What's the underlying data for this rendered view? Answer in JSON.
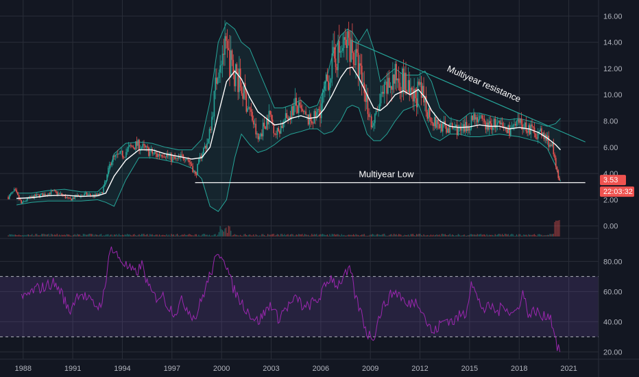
{
  "chart_data": {
    "type": "candlestick",
    "title": "",
    "colors": {
      "background": "#131722",
      "grid": "#2a2e39",
      "axis_text": "#b2b5be",
      "candle_up": "#26a69a",
      "candle_down": "#ef5350",
      "ma": "#ffffff",
      "band": "#26a69a",
      "band_fill": "rgba(38,166,154,0.10)",
      "trendline": "#26a69a",
      "low_line": "#ffffff",
      "price_label_bg": "#ef5350",
      "rsi_line": "#9c27b0",
      "rsi_zone": "rgba(126,87,194,0.18)"
    },
    "x_axis": {
      "range": [
        1986.6,
        2022.8
      ],
      "ticks": [
        {
          "value": 1988,
          "label": "1988"
        },
        {
          "value": 1991,
          "label": "1991"
        },
        {
          "value": 1994,
          "label": "1994"
        },
        {
          "value": 1997,
          "label": "1997"
        },
        {
          "value": 2000,
          "label": "2000"
        },
        {
          "value": 2003,
          "label": "2003"
        },
        {
          "value": 2006,
          "label": "2006"
        },
        {
          "value": 2009,
          "label": "2009"
        },
        {
          "value": 2012,
          "label": "2012"
        },
        {
          "value": 2015,
          "label": "2015"
        },
        {
          "value": 2018,
          "label": "2018"
        },
        {
          "value": 2021,
          "label": "2021"
        }
      ]
    },
    "price_axis": {
      "range": [
        -0.8,
        16.8
      ],
      "ticks": [
        {
          "value": 0,
          "label": "0.00"
        },
        {
          "value": 2,
          "label": "2.00"
        },
        {
          "value": 4,
          "label": "4.00"
        },
        {
          "value": 6,
          "label": "6.00"
        },
        {
          "value": 8,
          "label": "8.00"
        },
        {
          "value": 10,
          "label": "10.00"
        },
        {
          "value": 12,
          "label": "12.00"
        },
        {
          "value": 14,
          "label": "14.00"
        },
        {
          "value": 16,
          "label": "16.00"
        }
      ]
    },
    "rsi_axis": {
      "range": [
        17,
        92
      ],
      "ticks": [
        {
          "value": 20,
          "label": "20.00"
        },
        {
          "value": 40,
          "label": "40.00"
        },
        {
          "value": 60,
          "label": "60.00"
        },
        {
          "value": 80,
          "label": "80.00"
        }
      ],
      "upper_band": 70,
      "lower_band": 30
    },
    "price_series": [
      [
        1987.1,
        2.2
      ],
      [
        1987.5,
        2.7
      ],
      [
        1987.9,
        1.7
      ],
      [
        1988.3,
        2.1
      ],
      [
        1988.8,
        2.3
      ],
      [
        1989.3,
        2.4
      ],
      [
        1989.8,
        2.6
      ],
      [
        1990.3,
        2.4
      ],
      [
        1990.8,
        2.0
      ],
      [
        1991.3,
        2.3
      ],
      [
        1991.8,
        2.4
      ],
      [
        1992.3,
        2.3
      ],
      [
        1992.7,
        2.4
      ],
      [
        1993.0,
        3.4
      ],
      [
        1993.3,
        5.0
      ],
      [
        1993.7,
        5.3
      ],
      [
        1994.1,
        5.5
      ],
      [
        1994.5,
        6.0
      ],
      [
        1994.9,
        6.2
      ],
      [
        1995.3,
        5.9
      ],
      [
        1995.7,
        5.6
      ],
      [
        1996.1,
        5.4
      ],
      [
        1996.5,
        5.6
      ],
      [
        1996.9,
        5.2
      ],
      [
        1997.3,
        5.0
      ],
      [
        1997.8,
        5.4
      ],
      [
        1998.2,
        4.6
      ],
      [
        1998.4,
        3.8
      ],
      [
        1998.8,
        5.6
      ],
      [
        1999.2,
        6.5
      ],
      [
        1999.5,
        9.0
      ],
      [
        1999.8,
        12.5
      ],
      [
        2000.1,
        13.5
      ],
      [
        2000.4,
        12.8
      ],
      [
        2000.7,
        12.0
      ],
      [
        2001.0,
        11.2
      ],
      [
        2001.3,
        10.2
      ],
      [
        2001.6,
        9.2
      ],
      [
        2001.9,
        8.0
      ],
      [
        2002.2,
        6.5
      ],
      [
        2002.5,
        7.5
      ],
      [
        2002.9,
        8.5
      ],
      [
        2003.3,
        7.0
      ],
      [
        2003.7,
        7.8
      ],
      [
        2004.1,
        8.5
      ],
      [
        2004.5,
        9.2
      ],
      [
        2004.9,
        8.5
      ],
      [
        2005.3,
        8.0
      ],
      [
        2005.7,
        8.3
      ],
      [
        2006.1,
        9.5
      ],
      [
        2006.5,
        11.5
      ],
      [
        2006.9,
        13.0
      ],
      [
        2007.3,
        13.4
      ],
      [
        2007.7,
        14.1
      ],
      [
        2008.0,
        13.0
      ],
      [
        2008.4,
        11.5
      ],
      [
        2008.8,
        9.5
      ],
      [
        2009.1,
        7.5
      ],
      [
        2009.5,
        9.0
      ],
      [
        2009.9,
        10.2
      ],
      [
        2010.3,
        11.0
      ],
      [
        2010.7,
        11.5
      ],
      [
        2011.1,
        10.8
      ],
      [
        2011.5,
        9.5
      ],
      [
        2011.9,
        10.2
      ],
      [
        2012.3,
        9.5
      ],
      [
        2012.6,
        8.5
      ],
      [
        2012.9,
        7.8
      ],
      [
        2013.3,
        7.6
      ],
      [
        2013.7,
        7.4
      ],
      [
        2014.1,
        7.5
      ],
      [
        2014.5,
        7.2
      ],
      [
        2014.9,
        7.6
      ],
      [
        2015.3,
        8.5
      ],
      [
        2015.7,
        7.9
      ],
      [
        2016.1,
        7.6
      ],
      [
        2016.5,
        7.8
      ],
      [
        2016.9,
        7.5
      ],
      [
        2017.3,
        7.3
      ],
      [
        2017.7,
        7.5
      ],
      [
        2018.1,
        7.8
      ],
      [
        2018.5,
        7.5
      ],
      [
        2018.9,
        7.2
      ],
      [
        2019.3,
        7.0
      ],
      [
        2019.7,
        6.6
      ],
      [
        2020.0,
        6.0
      ],
      [
        2020.25,
        4.2
      ],
      [
        2020.5,
        3.53
      ]
    ],
    "moving_average": [
      [
        1987.6,
        2.1
      ],
      [
        1988.5,
        2.15
      ],
      [
        1989.5,
        2.3
      ],
      [
        1990.5,
        2.35
      ],
      [
        1991.5,
        2.25
      ],
      [
        1992.5,
        2.3
      ],
      [
        1993.0,
        2.5
      ],
      [
        1993.5,
        3.8
      ],
      [
        1994.2,
        5.0
      ],
      [
        1995.0,
        5.8
      ],
      [
        1995.8,
        5.8
      ],
      [
        1996.6,
        5.5
      ],
      [
        1997.4,
        5.3
      ],
      [
        1998.2,
        5.1
      ],
      [
        1998.8,
        5.2
      ],
      [
        1999.3,
        6.0
      ],
      [
        1999.8,
        8.5
      ],
      [
        2000.3,
        11.0
      ],
      [
        2000.8,
        11.8
      ],
      [
        2001.2,
        11.2
      ],
      [
        2001.7,
        9.8
      ],
      [
        2002.2,
        8.7
      ],
      [
        2002.7,
        8.2
      ],
      [
        2003.2,
        7.7
      ],
      [
        2003.7,
        7.8
      ],
      [
        2004.2,
        8.2
      ],
      [
        2004.8,
        8.4
      ],
      [
        2005.3,
        8.2
      ],
      [
        2005.8,
        8.3
      ],
      [
        2006.2,
        8.9
      ],
      [
        2006.7,
        10.0
      ],
      [
        2007.2,
        11.3
      ],
      [
        2007.6,
        12.0
      ],
      [
        2007.9,
        12.1
      ],
      [
        2008.3,
        11.3
      ],
      [
        2008.8,
        10.0
      ],
      [
        2009.2,
        9.0
      ],
      [
        2009.6,
        8.8
      ],
      [
        2010.0,
        9.2
      ],
      [
        2010.5,
        10.0
      ],
      [
        2011.0,
        10.3
      ],
      [
        2011.4,
        10.0
      ],
      [
        2011.9,
        10.4
      ],
      [
        2012.3,
        9.8
      ],
      [
        2012.7,
        8.8
      ],
      [
        2013.2,
        8.0
      ],
      [
        2013.8,
        7.6
      ],
      [
        2014.4,
        7.5
      ],
      [
        2015.0,
        7.55
      ],
      [
        2015.6,
        7.7
      ],
      [
        2016.2,
        7.6
      ],
      [
        2016.8,
        7.6
      ],
      [
        2017.4,
        7.4
      ],
      [
        2018.0,
        7.5
      ],
      [
        2018.6,
        7.4
      ],
      [
        2019.2,
        7.1
      ],
      [
        2019.7,
        6.7
      ],
      [
        2020.2,
        6.2
      ],
      [
        2020.5,
        5.8
      ]
    ],
    "band_upper": [
      [
        1987.6,
        2.5
      ],
      [
        1988.5,
        2.5
      ],
      [
        1989.5,
        2.7
      ],
      [
        1990.5,
        2.8
      ],
      [
        1991.5,
        2.6
      ],
      [
        1992.5,
        2.6
      ],
      [
        1993.0,
        3.2
      ],
      [
        1993.5,
        5.5
      ],
      [
        1994.2,
        6.3
      ],
      [
        1995.0,
        6.4
      ],
      [
        1995.8,
        6.3
      ],
      [
        1996.6,
        6.0
      ],
      [
        1997.4,
        5.8
      ],
      [
        1998.2,
        5.8
      ],
      [
        1998.8,
        6.6
      ],
      [
        1999.3,
        9.5
      ],
      [
        1999.8,
        14.0
      ],
      [
        2000.3,
        15.5
      ],
      [
        2000.8,
        15.0
      ],
      [
        2001.2,
        14.0
      ],
      [
        2001.7,
        13.5
      ],
      [
        2002.2,
        12.0
      ],
      [
        2002.7,
        10.5
      ],
      [
        2003.2,
        9.0
      ],
      [
        2003.7,
        9.0
      ],
      [
        2004.2,
        9.2
      ],
      [
        2004.8,
        9.6
      ],
      [
        2005.3,
        9.0
      ],
      [
        2005.8,
        9.2
      ],
      [
        2006.2,
        10.5
      ],
      [
        2006.7,
        13.0
      ],
      [
        2007.2,
        14.5
      ],
      [
        2007.6,
        15.0
      ],
      [
        2007.9,
        14.8
      ],
      [
        2008.3,
        14.0
      ],
      [
        2008.8,
        15.0
      ],
      [
        2009.2,
        13.5
      ],
      [
        2009.6,
        11.0
      ],
      [
        2010.0,
        11.5
      ],
      [
        2010.5,
        12.0
      ],
      [
        2011.0,
        11.5
      ],
      [
        2011.4,
        11.5
      ],
      [
        2011.9,
        11.5
      ],
      [
        2012.3,
        11.8
      ],
      [
        2012.7,
        11.0
      ],
      [
        2013.2,
        9.0
      ],
      [
        2013.8,
        8.2
      ],
      [
        2014.4,
        8.0
      ],
      [
        2015.0,
        8.6
      ],
      [
        2015.6,
        8.6
      ],
      [
        2016.2,
        8.4
      ],
      [
        2016.8,
        8.2
      ],
      [
        2017.4,
        8.1
      ],
      [
        2018.0,
        8.2
      ],
      [
        2018.6,
        8.0
      ],
      [
        2019.2,
        7.8
      ],
      [
        2019.7,
        7.6
      ],
      [
        2020.2,
        7.8
      ],
      [
        2020.5,
        8.2
      ]
    ],
    "band_lower": [
      [
        1987.6,
        1.6
      ],
      [
        1988.5,
        1.8
      ],
      [
        1989.5,
        1.9
      ],
      [
        1990.5,
        1.9
      ],
      [
        1991.5,
        1.9
      ],
      [
        1992.5,
        2.0
      ],
      [
        1993.0,
        1.8
      ],
      [
        1993.5,
        1.5
      ],
      [
        1994.2,
        3.5
      ],
      [
        1995.0,
        5.2
      ],
      [
        1995.8,
        5.2
      ],
      [
        1996.6,
        5.0
      ],
      [
        1997.4,
        4.8
      ],
      [
        1998.2,
        4.4
      ],
      [
        1998.8,
        3.6
      ],
      [
        1999.3,
        1.5
      ],
      [
        1999.8,
        1.1
      ],
      [
        2000.3,
        2.0
      ],
      [
        2000.8,
        5.2
      ],
      [
        2001.2,
        7.0
      ],
      [
        2001.7,
        6.2
      ],
      [
        2002.2,
        5.6
      ],
      [
        2002.7,
        5.8
      ],
      [
        2003.2,
        6.2
      ],
      [
        2003.7,
        6.7
      ],
      [
        2004.2,
        7.0
      ],
      [
        2004.8,
        7.2
      ],
      [
        2005.3,
        7.4
      ],
      [
        2005.8,
        7.4
      ],
      [
        2006.2,
        7.0
      ],
      [
        2006.7,
        7.2
      ],
      [
        2007.2,
        8.0
      ],
      [
        2007.6,
        9.0
      ],
      [
        2007.9,
        9.2
      ],
      [
        2008.3,
        9.0
      ],
      [
        2008.8,
        7.0
      ],
      [
        2009.2,
        6.5
      ],
      [
        2009.6,
        6.5
      ],
      [
        2010.0,
        7.0
      ],
      [
        2010.5,
        8.0
      ],
      [
        2011.0,
        8.8
      ],
      [
        2011.4,
        9.0
      ],
      [
        2011.9,
        9.3
      ],
      [
        2012.3,
        8.0
      ],
      [
        2012.7,
        6.8
      ],
      [
        2013.2,
        6.5
      ],
      [
        2013.8,
        7.0
      ],
      [
        2014.4,
        7.0
      ],
      [
        2015.0,
        6.8
      ],
      [
        2015.6,
        6.8
      ],
      [
        2016.2,
        6.9
      ],
      [
        2016.8,
        7.0
      ],
      [
        2017.4,
        6.9
      ],
      [
        2018.0,
        6.8
      ],
      [
        2018.6,
        6.6
      ],
      [
        2019.2,
        6.4
      ],
      [
        2019.7,
        5.9
      ],
      [
        2020.2,
        4.6
      ],
      [
        2020.5,
        3.4
      ]
    ],
    "rsi_series": [
      [
        1987.9,
        55
      ],
      [
        1988.3,
        58
      ],
      [
        1988.8,
        62
      ],
      [
        1989.3,
        63
      ],
      [
        1989.8,
        66
      ],
      [
        1990.3,
        60
      ],
      [
        1990.8,
        46
      ],
      [
        1991.0,
        52
      ],
      [
        1991.4,
        60
      ],
      [
        1991.8,
        56
      ],
      [
        1992.2,
        52
      ],
      [
        1992.6,
        50
      ],
      [
        1993.0,
        62
      ],
      [
        1993.2,
        90
      ],
      [
        1993.6,
        85
      ],
      [
        1994.0,
        80
      ],
      [
        1994.4,
        75
      ],
      [
        1994.8,
        72
      ],
      [
        1995.2,
        78
      ],
      [
        1995.6,
        62
      ],
      [
        1996.0,
        56
      ],
      [
        1996.4,
        58
      ],
      [
        1996.8,
        50
      ],
      [
        1997.2,
        46
      ],
      [
        1997.6,
        54
      ],
      [
        1998.0,
        48
      ],
      [
        1998.4,
        42
      ],
      [
        1998.8,
        55
      ],
      [
        1999.2,
        68
      ],
      [
        1999.6,
        80
      ],
      [
        2000.0,
        86
      ],
      [
        2000.3,
        78
      ],
      [
        2000.6,
        65
      ],
      [
        2001.0,
        56
      ],
      [
        2001.4,
        50
      ],
      [
        2001.8,
        44
      ],
      [
        2002.2,
        40
      ],
      [
        2002.6,
        46
      ],
      [
        2003.0,
        52
      ],
      [
        2003.4,
        42
      ],
      [
        2003.8,
        48
      ],
      [
        2004.2,
        52
      ],
      [
        2004.6,
        56
      ],
      [
        2005.0,
        48
      ],
      [
        2005.4,
        52
      ],
      [
        2005.8,
        54
      ],
      [
        2006.2,
        62
      ],
      [
        2006.6,
        70
      ],
      [
        2007.0,
        64
      ],
      [
        2007.4,
        70
      ],
      [
        2007.8,
        74
      ],
      [
        2008.1,
        56
      ],
      [
        2008.5,
        44
      ],
      [
        2008.8,
        32
      ],
      [
        2009.2,
        30
      ],
      [
        2009.6,
        46
      ],
      [
        2010.0,
        54
      ],
      [
        2010.4,
        60
      ],
      [
        2010.8,
        58
      ],
      [
        2011.2,
        50
      ],
      [
        2011.6,
        54
      ],
      [
        2012.0,
        52
      ],
      [
        2012.4,
        40
      ],
      [
        2012.8,
        32
      ],
      [
        2013.2,
        38
      ],
      [
        2013.6,
        42
      ],
      [
        2014.0,
        40
      ],
      [
        2014.4,
        44
      ],
      [
        2014.8,
        46
      ],
      [
        2015.1,
        68
      ],
      [
        2015.5,
        54
      ],
      [
        2015.9,
        48
      ],
      [
        2016.3,
        50
      ],
      [
        2016.7,
        46
      ],
      [
        2017.1,
        52
      ],
      [
        2017.5,
        45
      ],
      [
        2017.9,
        48
      ],
      [
        2018.2,
        60
      ],
      [
        2018.6,
        44
      ],
      [
        2019.0,
        48
      ],
      [
        2019.4,
        42
      ],
      [
        2019.8,
        46
      ],
      [
        2020.1,
        35
      ],
      [
        2020.3,
        24
      ],
      [
        2020.5,
        21
      ]
    ],
    "trendline": {
      "start": [
        2007.9,
        14.1
      ],
      "end": [
        2022.0,
        6.4
      ],
      "label": "Multiyear resistance"
    },
    "support_line": {
      "start": [
        1998.4,
        3.3
      ],
      "end": [
        2022.0,
        3.3
      ],
      "label": "Multiyear Low"
    },
    "last_price": {
      "value": 3.53,
      "label": "3.53",
      "countdown": "22:03:32"
    }
  }
}
